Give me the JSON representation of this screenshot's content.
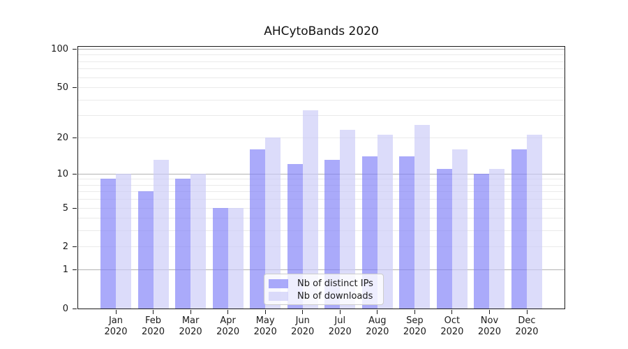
{
  "chart_data": {
    "type": "bar",
    "title": "AHCytoBands 2020",
    "scale": "log10(1+y)",
    "categories": [
      "Jan",
      "Feb",
      "Mar",
      "Apr",
      "May",
      "Jun",
      "Jul",
      "Aug",
      "Sep",
      "Oct",
      "Nov",
      "Dec"
    ],
    "year_label": "2020",
    "series": [
      {
        "name": "Nb of distinct IPs",
        "color": "#7e7ef7",
        "values": [
          9,
          7,
          9,
          5,
          16,
          12,
          13,
          14,
          14,
          11,
          10,
          16
        ]
      },
      {
        "name": "Nb of downloads",
        "color": "#cacaf7",
        "values": [
          10,
          13,
          10,
          5,
          20,
          33,
          23,
          21,
          25,
          16,
          11,
          21
        ]
      }
    ],
    "bar_alpha": 0.66,
    "y_ticks": [
      0,
      1,
      2,
      5,
      10,
      20,
      50,
      100
    ],
    "ylim": [
      0,
      106.3
    ],
    "grid": {
      "major": [
        1,
        10,
        100
      ],
      "minor": [
        2,
        3,
        4,
        5,
        6,
        7,
        8,
        9,
        20,
        30,
        40,
        50,
        60,
        70,
        80,
        90
      ]
    },
    "legend": {
      "position": "lower center"
    },
    "colors": {
      "grid_major": "#b3b3b3",
      "grid_minor": "#eaeaea",
      "spine": "#1a1a1a",
      "text": "#1a1a1a",
      "background": "#ffffff"
    }
  }
}
